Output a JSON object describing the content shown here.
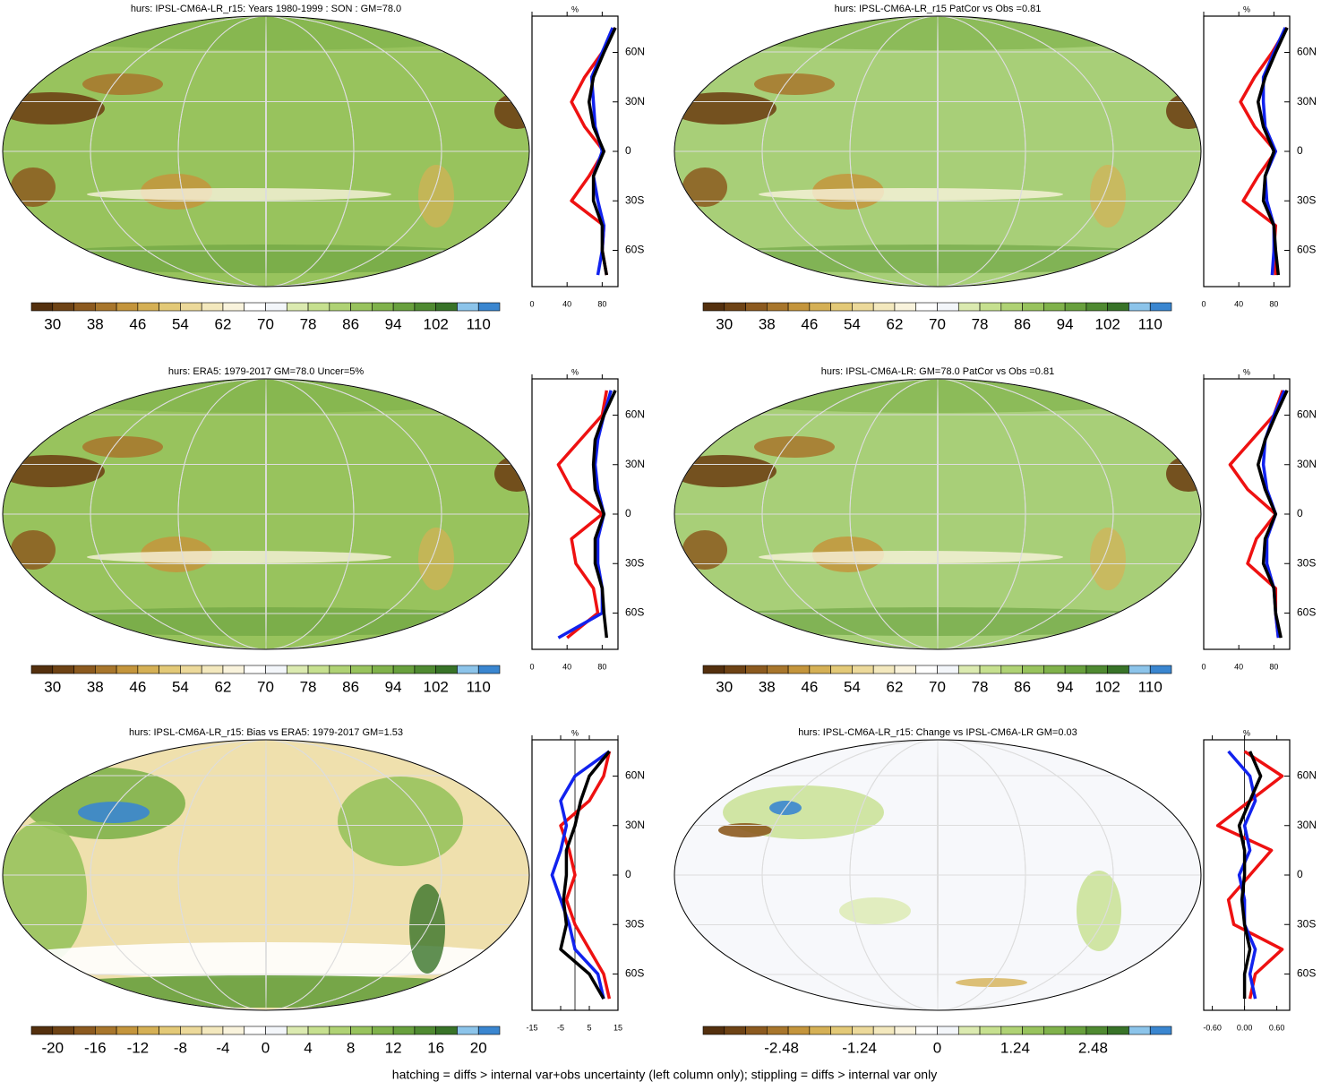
{
  "chart_data": [
    {
      "type": "line",
      "title": "hurs: IPSL-CM6A-LR_r15: Years 1980-1999 : SON : GM=78.0",
      "xlabel": "%",
      "map_color": "#98c35d",
      "cbar_labels": [
        30,
        38,
        46,
        54,
        62,
        70,
        78,
        86,
        94,
        102,
        110
      ],
      "cbar_lim": [
        26,
        114
      ],
      "y": [
        -75,
        -60,
        -45,
        -30,
        -15,
        0,
        15,
        30,
        45,
        60,
        75
      ],
      "ylim": [
        -82,
        82
      ],
      "yticks": [
        {
          "value": -60,
          "label": "60S"
        },
        {
          "value": -30,
          "label": "30S"
        },
        {
          "value": 0,
          "label": "0"
        },
        {
          "value": 30,
          "label": "30N"
        },
        {
          "value": 60,
          "label": "60N"
        }
      ],
      "xlim": [
        0,
        98
      ],
      "xticks": [
        0,
        40,
        80
      ],
      "series": [
        {
          "color": "#ee1111",
          "values": [
            85,
            80,
            82,
            45,
            65,
            82,
            60,
            45,
            60,
            80,
            95
          ]
        },
        {
          "color": "#1122ee",
          "values": [
            75,
            80,
            82,
            75,
            70,
            80,
            72,
            70,
            68,
            80,
            92
          ]
        },
        {
          "color": "#000000",
          "values": [
            85,
            80,
            80,
            70,
            70,
            82,
            70,
            65,
            70,
            82,
            95
          ]
        }
      ]
    },
    {
      "type": "line",
      "title": "hurs: IPSL-CM6A-LR_r15 PatCor vs Obs =0.81",
      "xlabel": "%",
      "map_color": "#a8cf78",
      "cbar_labels": [
        30,
        38,
        46,
        54,
        62,
        70,
        78,
        86,
        94,
        102,
        110
      ],
      "cbar_lim": [
        26,
        114
      ],
      "y": [
        -75,
        -60,
        -45,
        -30,
        -15,
        0,
        15,
        30,
        45,
        60,
        75
      ],
      "ylim": [
        -82,
        82
      ],
      "yticks": [
        {
          "value": -60,
          "label": "60S"
        },
        {
          "value": -30,
          "label": "30S"
        },
        {
          "value": 0,
          "label": "0"
        },
        {
          "value": 30,
          "label": "30N"
        },
        {
          "value": 60,
          "label": "60N"
        }
      ],
      "xlim": [
        0,
        98
      ],
      "xticks": [
        0,
        40,
        80
      ],
      "series": [
        {
          "color": "#ee1111",
          "values": [
            82,
            80,
            82,
            45,
            62,
            82,
            58,
            42,
            58,
            78,
            95
          ]
        },
        {
          "color": "#1122ee",
          "values": [
            78,
            80,
            80,
            72,
            70,
            82,
            70,
            68,
            68,
            80,
            93
          ]
        },
        {
          "color": "#000000",
          "values": [
            85,
            82,
            80,
            68,
            70,
            80,
            68,
            62,
            70,
            82,
            95
          ]
        }
      ]
    },
    {
      "type": "line",
      "title": "hurs: ERA5: 1979-2017 GM=78.0 Uncer=5%",
      "xlabel": "%",
      "map_color": "#98c35d",
      "cbar_labels": [
        30,
        38,
        46,
        54,
        62,
        70,
        78,
        86,
        94,
        102,
        110
      ],
      "cbar_lim": [
        26,
        114
      ],
      "y": [
        -75,
        -60,
        -45,
        -30,
        -15,
        0,
        15,
        30,
        45,
        60,
        75
      ],
      "ylim": [
        -82,
        82
      ],
      "yticks": [
        {
          "value": -60,
          "label": "60S"
        },
        {
          "value": -30,
          "label": "30S"
        },
        {
          "value": 0,
          "label": "0"
        },
        {
          "value": 30,
          "label": "30N"
        },
        {
          "value": 60,
          "label": "60N"
        }
      ],
      "xlim": [
        0,
        98
      ],
      "xticks": [
        0,
        40,
        80
      ],
      "series": [
        {
          "color": "#ee1111",
          "values": [
            40,
            75,
            70,
            50,
            45,
            80,
            45,
            30,
            55,
            80,
            85
          ]
        },
        {
          "color": "#1122ee",
          "values": [
            30,
            80,
            80,
            75,
            75,
            82,
            75,
            72,
            75,
            82,
            90
          ]
        },
        {
          "color": "#000000",
          "values": [
            85,
            82,
            80,
            72,
            72,
            82,
            72,
            70,
            72,
            82,
            95
          ]
        }
      ]
    },
    {
      "type": "line",
      "title": "hurs: IPSL-CM6A-LR: GM=78.0 PatCor vs Obs =0.81",
      "xlabel": "%",
      "map_color": "#a8cf78",
      "cbar_labels": [
        30,
        38,
        46,
        54,
        62,
        70,
        78,
        86,
        94,
        102,
        110
      ],
      "cbar_lim": [
        26,
        114
      ],
      "y": [
        -75,
        -60,
        -45,
        -30,
        -15,
        0,
        15,
        30,
        45,
        60,
        75
      ],
      "ylim": [
        -82,
        82
      ],
      "yticks": [
        {
          "value": -60,
          "label": "60S"
        },
        {
          "value": -30,
          "label": "30S"
        },
        {
          "value": 0,
          "label": "0"
        },
        {
          "value": 30,
          "label": "30N"
        },
        {
          "value": 60,
          "label": "60N"
        }
      ],
      "xlim": [
        0,
        98
      ],
      "xticks": [
        0,
        40,
        80
      ],
      "series": [
        {
          "color": "#ee1111",
          "values": [
            85,
            82,
            82,
            50,
            60,
            82,
            50,
            30,
            55,
            80,
            90
          ]
        },
        {
          "color": "#1122ee",
          "values": [
            85,
            82,
            80,
            72,
            72,
            82,
            72,
            68,
            70,
            80,
            92
          ]
        },
        {
          "color": "#000000",
          "values": [
            88,
            82,
            80,
            68,
            70,
            82,
            70,
            62,
            70,
            82,
            95
          ]
        }
      ]
    },
    {
      "type": "line",
      "title": "hurs: IPSL-CM6A-LR_r15: Bias vs ERA5: 1979-2017  GM=1.53",
      "xlabel": "%",
      "map_color": "#efe0ad",
      "cbar_labels": [
        -20,
        -16,
        -12,
        -8,
        -4,
        0,
        4,
        8,
        12,
        16,
        20
      ],
      "cbar_lim": [
        -22,
        22
      ],
      "y": [
        -75,
        -60,
        -45,
        -30,
        -15,
        0,
        15,
        30,
        45,
        60,
        75
      ],
      "ylim": [
        -82,
        82
      ],
      "yticks": [
        {
          "value": -60,
          "label": "60S"
        },
        {
          "value": -30,
          "label": "30S"
        },
        {
          "value": 0,
          "label": "0"
        },
        {
          "value": 30,
          "label": "30N"
        },
        {
          "value": 60,
          "label": "60N"
        }
      ],
      "xlim": [
        -15,
        15
      ],
      "xticks": [
        -15,
        -5,
        5,
        15
      ],
      "series": [
        {
          "color": "#ee1111",
          "values": [
            12,
            10,
            5,
            0,
            -3,
            0,
            -2,
            -5,
            5,
            10,
            12
          ]
        },
        {
          "color": "#1122ee",
          "values": [
            10,
            8,
            0,
            -2,
            -5,
            -8,
            -5,
            -3,
            -5,
            0,
            12
          ]
        },
        {
          "color": "#000000",
          "values": [
            10,
            5,
            -5,
            -3,
            -4,
            -3,
            -3,
            0,
            2,
            5,
            12
          ]
        }
      ]
    },
    {
      "type": "line",
      "title": "hurs: IPSL-CM6A-LR_r15: Change vs IPSL-CM6A-LR GM=0.03",
      "xlabel": "%",
      "map_color": "#f7f8fb",
      "cbar_labels": [
        -2.48,
        -1.24,
        0,
        1.24,
        2.48
      ],
      "cbar_lim": [
        -3.73,
        3.73
      ],
      "y": [
        -75,
        -60,
        -45,
        -30,
        -15,
        0,
        15,
        30,
        45,
        60,
        75
      ],
      "ylim": [
        -82,
        82
      ],
      "yticks": [
        {
          "value": -60,
          "label": "60S"
        },
        {
          "value": -30,
          "label": "30S"
        },
        {
          "value": 0,
          "label": "0"
        },
        {
          "value": 30,
          "label": "30N"
        },
        {
          "value": 60,
          "label": "60N"
        }
      ],
      "xlim": [
        -0.76,
        0.84
      ],
      "xticks": [
        {
          "value": -0.6,
          "label": "-0.60"
        },
        {
          "value": 0,
          "label": "0.00"
        },
        {
          "value": 0.6,
          "label": "0.60"
        }
      ],
      "series": [
        {
          "color": "#ee1111",
          "values": [
            0.1,
            0.2,
            0.7,
            -0.2,
            -0.3,
            0.1,
            0.5,
            -0.5,
            0.1,
            0.7,
            0.0
          ]
        },
        {
          "color": "#1122ee",
          "values": [
            0.2,
            0.1,
            0.2,
            0.0,
            0.0,
            -0.1,
            0.1,
            0.0,
            0.2,
            0.1,
            -0.3
          ]
        },
        {
          "color": "#000000",
          "values": [
            0.0,
            0.0,
            0.1,
            0.0,
            -0.05,
            0.0,
            0.0,
            -0.1,
            0.1,
            0.3,
            0.1
          ]
        }
      ]
    }
  ],
  "colorbar_colors": [
    "#54300e",
    "#6e4315",
    "#8c5a1f",
    "#a8762c",
    "#c4953c",
    "#d5b055",
    "#e3c977",
    "#ecd99a",
    "#f3e8bd",
    "#f9f3dc",
    "#ffffff",
    "#f3f6fa",
    "#dbeab0",
    "#c6e08f",
    "#afd274",
    "#98c35d",
    "#80b24b",
    "#68a03d",
    "#4f8a31",
    "#387328",
    "#8cc4ea",
    "#3a86d0"
  ],
  "footnote": "hatching = diffs > internal var+obs uncertainty (left column only); stippling = diffs > internal var only"
}
